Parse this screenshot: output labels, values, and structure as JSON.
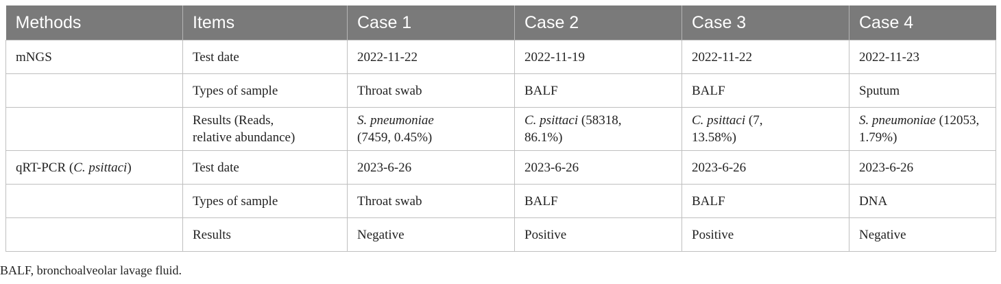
{
  "headers": [
    "Methods",
    "Items",
    "Case 1",
    "Case 2",
    "Case 3",
    "Case 4"
  ],
  "rows": [
    {
      "method": "mNGS",
      "item": "Test date",
      "c1": "2022-11-22",
      "c2": "2022-11-19",
      "c3": "2022-11-22",
      "c4": "2022-11-23"
    },
    {
      "method": "",
      "item": "Types of sample",
      "c1": "Throat swab",
      "c2": "BALF",
      "c3": "BALF",
      "c4": "Sputum"
    },
    {
      "method": "",
      "item_l1": "Results (Reads,",
      "item_l2": "relative abundance)",
      "c1_species": "S. pneumoniae",
      "c1_rest": "(7459, 0.45%)",
      "c2_species": "C. psittaci",
      "c2_rest1": " (58318,",
      "c2_rest2": "86.1%)",
      "c3_species": "C. psittaci",
      "c3_rest1": " (7,",
      "c3_rest2": "13.58%)",
      "c4_species": "S. pneumoniae",
      "c4_rest1": " (12053,",
      "c4_rest2": "1.79%)"
    },
    {
      "method_pre": "qRT-PCR (",
      "method_species": "C. psittaci",
      "method_post": ")",
      "item": "Test date",
      "c1": "2023-6-26",
      "c2": "2023-6-26",
      "c3": "2023-6-26",
      "c4": "2023-6-26"
    },
    {
      "method": "",
      "item": "Types of sample",
      "c1": "Throat swab",
      "c2": "BALF",
      "c3": "BALF",
      "c4": "DNA"
    },
    {
      "method": "",
      "item": "Results",
      "c1": "Negative",
      "c2": "Positive",
      "c3": "Positive",
      "c4": "Negative"
    }
  ],
  "caption": "BALF, bronchoalveolar lavage fluid."
}
